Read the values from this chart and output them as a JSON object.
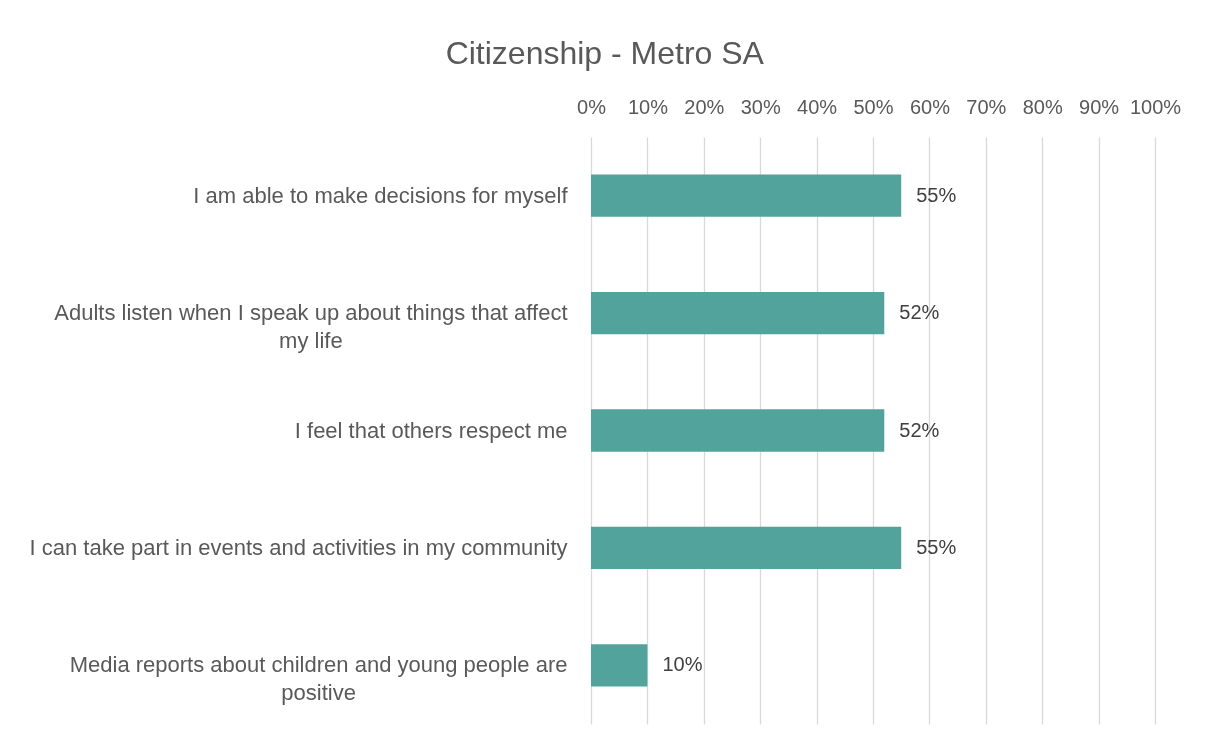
{
  "chart_data": {
    "type": "bar",
    "orientation": "horizontal",
    "title": "Citizenship - Metro SA",
    "categories": [
      "I am able to make decisions for myself",
      "Adults listen when I speak up about things that affect my life",
      "I feel that others respect me",
      "I can take part in events and activities in my community",
      "Media reports about children and young people are positive"
    ],
    "values": [
      55,
      52,
      52,
      55,
      10
    ],
    "value_labels": [
      "55%",
      "52%",
      "52%",
      "55%",
      "10%"
    ],
    "color": "#52a39c",
    "xlim": [
      0,
      100
    ],
    "xticks": [
      {
        "value": 0,
        "label": "0%"
      },
      {
        "value": 10,
        "label": "10%"
      },
      {
        "value": 20,
        "label": "20%"
      },
      {
        "value": 30,
        "label": "30%"
      },
      {
        "value": 40,
        "label": "40%"
      },
      {
        "value": 50,
        "label": "50%"
      },
      {
        "value": 60,
        "label": "60%"
      },
      {
        "value": 70,
        "label": "70%"
      },
      {
        "value": 80,
        "label": "80%"
      },
      {
        "value": 90,
        "label": "90%"
      },
      {
        "value": 100,
        "label": "100%"
      }
    ],
    "grid": "x"
  }
}
